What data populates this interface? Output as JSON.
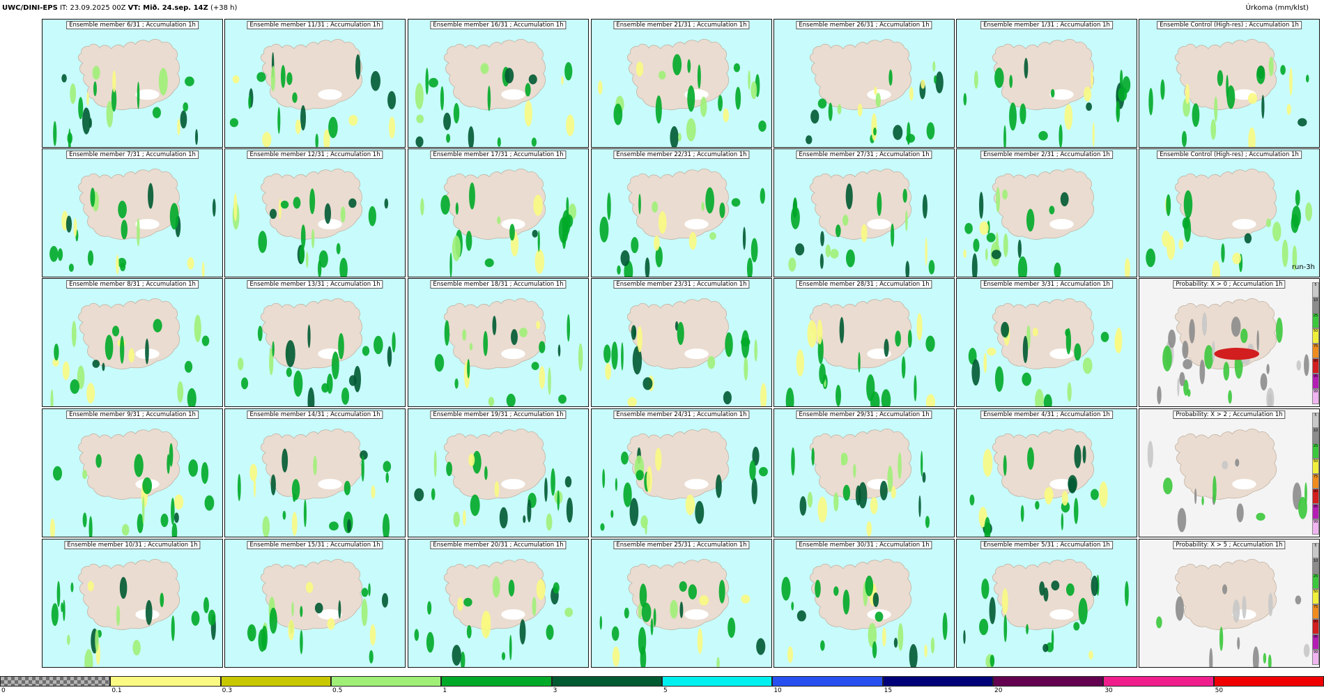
{
  "header": {
    "model": "UWC/DINI-EPS",
    "it_label": "IT: 23.09.2025 00Z",
    "vt_label": "VT: Mið. 24.sep. 14Z",
    "lead": "(+38 h)",
    "units": "Úrkoma (mm/klst)"
  },
  "panels": [
    {
      "title": "Ensemble member 6/31 ; Accumulation 1h",
      "kind": "member"
    },
    {
      "title": "Ensemble member 11/31 ; Accumulation 1h",
      "kind": "member"
    },
    {
      "title": "Ensemble member 16/31 ; Accumulation 1h",
      "kind": "member"
    },
    {
      "title": "Ensemble member 21/31 ; Accumulation 1h",
      "kind": "member"
    },
    {
      "title": "Ensemble member 26/31 ; Accumulation 1h",
      "kind": "member"
    },
    {
      "title": "Ensemble member 1/31 ; Accumulation 1h",
      "kind": "member"
    },
    {
      "title": "Ensemble Control (High-res) ; Accumulation 1h",
      "kind": "member"
    },
    {
      "title": "Ensemble member 7/31 ; Accumulation 1h",
      "kind": "member"
    },
    {
      "title": "Ensemble member 12/31 ; Accumulation 1h",
      "kind": "member"
    },
    {
      "title": "Ensemble member 17/31 ; Accumulation 1h",
      "kind": "member"
    },
    {
      "title": "Ensemble member 22/31 ; Accumulation 1h",
      "kind": "member"
    },
    {
      "title": "Ensemble member 27/31 ; Accumulation 1h",
      "kind": "member"
    },
    {
      "title": "Ensemble member 2/31 ; Accumulation 1h",
      "kind": "member"
    },
    {
      "title": "Ensemble Control (High-res) ; Accumulation 1h",
      "kind": "member",
      "run_label": "run-3h"
    },
    {
      "title": "Ensemble member 8/31 ; Accumulation 1h",
      "kind": "member"
    },
    {
      "title": "Ensemble member 13/31 ; Accumulation 1h",
      "kind": "member"
    },
    {
      "title": "Ensemble member 18/31 ; Accumulation 1h",
      "kind": "member"
    },
    {
      "title": "Ensemble member 23/31 ; Accumulation 1h",
      "kind": "member"
    },
    {
      "title": "Ensemble member 28/31 ; Accumulation 1h",
      "kind": "member"
    },
    {
      "title": "Ensemble member 3/31 ; Accumulation 1h",
      "kind": "member"
    },
    {
      "title": "Probability: X > 0 ; Accumulation 1h",
      "kind": "prob"
    },
    {
      "title": "Ensemble member 9/31 ; Accumulation 1h",
      "kind": "member"
    },
    {
      "title": "Ensemble member 14/31 ; Accumulation 1h",
      "kind": "member"
    },
    {
      "title": "Ensemble member 19/31 ; Accumulation 1h",
      "kind": "member"
    },
    {
      "title": "Ensemble member 24/31 ; Accumulation 1h",
      "kind": "member"
    },
    {
      "title": "Ensemble member 29/31 ; Accumulation 1h",
      "kind": "member"
    },
    {
      "title": "Ensemble member 4/31 ; Accumulation 1h",
      "kind": "member"
    },
    {
      "title": "Probability: X > 2 ; Accumulation 1h",
      "kind": "prob"
    },
    {
      "title": "Ensemble member 10/31 ; Accumulation 1h",
      "kind": "member"
    },
    {
      "title": "Ensemble member 15/31 ; Accumulation 1h",
      "kind": "member"
    },
    {
      "title": "Ensemble member 20/31 ; Accumulation 1h",
      "kind": "member"
    },
    {
      "title": "Ensemble member 25/31 ; Accumulation 1h",
      "kind": "member"
    },
    {
      "title": "Ensemble member 30/31 ; Accumulation 1h",
      "kind": "member"
    },
    {
      "title": "Ensemble member 5/31 ; Accumulation 1h",
      "kind": "member"
    },
    {
      "title": "Probability: X > 5 ; Accumulation 1h",
      "kind": "prob"
    }
  ],
  "prob_legend": {
    "labels": [
      "5",
      "10",
      "25",
      "50",
      "75",
      "90",
      "95",
      "99"
    ],
    "colors": [
      "#c8c8c8",
      "#8c8c8c",
      "#3cc83c",
      "#f0f03c",
      "#f08c1e",
      "#d21e1e",
      "#b41eb4",
      "#f0b4f0"
    ]
  },
  "colorbar": {
    "segments": [
      {
        "label": "0",
        "color": "checker"
      },
      {
        "label": "0.1",
        "color": "#fafa82"
      },
      {
        "label": "0.3",
        "color": "#c8c800"
      },
      {
        "label": "0.5",
        "color": "#a0f078"
      },
      {
        "label": "1",
        "color": "#00aa28"
      },
      {
        "label": "3",
        "color": "#005a32"
      },
      {
        "label": "5",
        "color": "#00f0f0"
      },
      {
        "label": "10",
        "color": "#2850f0"
      },
      {
        "label": "15",
        "color": "#000078"
      },
      {
        "label": "20",
        "color": "#640050"
      },
      {
        "label": "30",
        "color": "#f01e8c"
      },
      {
        "label": "50",
        "color": "#f00000"
      }
    ]
  },
  "map_colors": {
    "sea": "#c8fbfb",
    "land": "#eadcd0",
    "glacier": "#ffffff",
    "light_precip": "#fafa82",
    "mid_precip": "#a0f078",
    "heavy_precip": "#00aa28",
    "very_heavy_precip": "#005a32",
    "extreme_precip": "#00f0f0"
  }
}
